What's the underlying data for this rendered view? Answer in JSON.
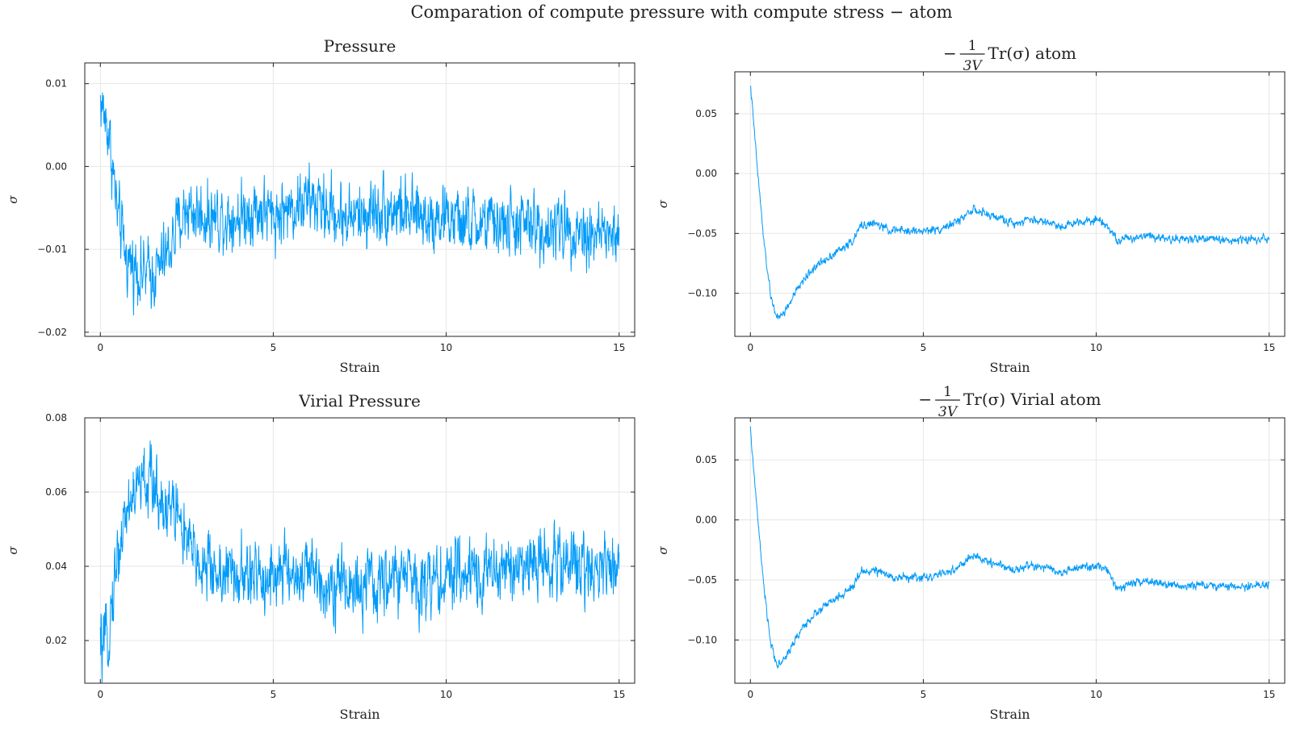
{
  "figure": {
    "title": "Comparation of compute pressure with compute stress − atom"
  },
  "style": {
    "line_color": "#009af9",
    "grid_color": "#e6e6e6",
    "axis_color": "#222222"
  },
  "chart_data": [
    {
      "id": "pressure",
      "type": "line",
      "title": "Pressure",
      "xlabel": "Strain",
      "ylabel": "σ",
      "xlim": [
        -0.45,
        15.45
      ],
      "ylim": [
        -0.0205,
        0.0125
      ],
      "xticks": [
        0,
        5,
        10,
        15
      ],
      "xtick_labels": [
        "0",
        "5",
        "10",
        "15"
      ],
      "yticks": [
        -0.02,
        -0.01,
        0.0,
        0.01
      ],
      "ytick_labels": [
        "−0.02",
        "−0.01",
        "0.00",
        "0.01"
      ],
      "grid": true,
      "legend": "none",
      "series": [
        {
          "x": [
            0,
            0.25,
            0.5,
            0.75,
            1,
            1.25,
            1.5,
            1.75,
            2,
            2.25,
            2.5,
            3,
            3.5,
            4,
            4.5,
            5,
            5.5,
            6,
            6.5,
            7,
            7.5,
            8,
            8.5,
            9,
            9.5,
            10,
            10.5,
            11,
            11.5,
            12,
            12.5,
            13,
            13.5,
            14,
            14.5,
            15
          ],
          "y": [
            0.008,
            0.004,
            -0.006,
            -0.011,
            -0.012,
            -0.013,
            -0.013,
            -0.012,
            -0.01,
            -0.007,
            -0.005,
            -0.006,
            -0.006,
            -0.006,
            -0.005,
            -0.006,
            -0.005,
            -0.004,
            -0.005,
            -0.006,
            -0.006,
            -0.005,
            -0.005,
            -0.006,
            -0.006,
            -0.006,
            -0.007,
            -0.007,
            -0.007,
            -0.007,
            -0.007,
            -0.008,
            -0.007,
            -0.008,
            -0.008,
            -0.009
          ],
          "noise": 0.0032
        }
      ]
    },
    {
      "id": "stress-atom",
      "type": "line",
      "title": "−(1/3V) Tr(σ) atom",
      "title_math": {
        "prefix": "−",
        "numerator": "1",
        "denominator": "3V",
        "suffix": "Tr(σ) atom"
      },
      "xlabel": "Strain",
      "ylabel": "σ",
      "xlim": [
        -0.45,
        15.45
      ],
      "ylim": [
        -0.136,
        0.085
      ],
      "xticks": [
        0,
        5,
        10,
        15
      ],
      "xtick_labels": [
        "0",
        "5",
        "10",
        "15"
      ],
      "yticks": [
        -0.1,
        -0.05,
        0.0,
        0.05
      ],
      "ytick_labels": [
        "−0.10",
        "−0.05",
        "0.00",
        "0.05"
      ],
      "grid": true,
      "legend": "none",
      "series": [
        {
          "x": [
            0,
            0.1,
            0.2,
            0.4,
            0.6,
            0.8,
            1,
            1.2,
            1.5,
            1.8,
            2.1,
            2.4,
            2.7,
            3,
            3.2,
            3.6,
            4,
            4.5,
            5,
            5.5,
            6,
            6.4,
            6.8,
            7.2,
            7.6,
            8,
            8.5,
            9,
            9.5,
            10,
            10.3,
            10.6,
            11,
            11.5,
            12,
            12.5,
            13,
            13.5,
            14,
            14.5,
            15
          ],
          "y": [
            0.075,
            0.04,
            0.005,
            -0.06,
            -0.105,
            -0.122,
            -0.115,
            -0.105,
            -0.09,
            -0.08,
            -0.073,
            -0.067,
            -0.062,
            -0.055,
            -0.043,
            -0.042,
            -0.047,
            -0.048,
            -0.048,
            -0.046,
            -0.04,
            -0.03,
            -0.034,
            -0.037,
            -0.042,
            -0.038,
            -0.04,
            -0.044,
            -0.04,
            -0.038,
            -0.042,
            -0.056,
            -0.054,
            -0.051,
            -0.054,
            -0.055,
            -0.054,
            -0.055,
            -0.056,
            -0.055,
            -0.053
          ],
          "noise": 0.0028
        }
      ]
    },
    {
      "id": "virial-pressure",
      "type": "line",
      "title": "Virial Pressure",
      "xlabel": "Strain",
      "ylabel": "σ",
      "xlim": [
        -0.45,
        15.45
      ],
      "ylim": [
        0.0085,
        0.08
      ],
      "xticks": [
        0,
        5,
        10,
        15
      ],
      "xtick_labels": [
        "0",
        "5",
        "10",
        "15"
      ],
      "yticks": [
        0.02,
        0.04,
        0.06,
        0.08
      ],
      "ytick_labels": [
        "0.02",
        "0.04",
        "0.06",
        "0.08"
      ],
      "grid": true,
      "legend": "none",
      "series": [
        {
          "x": [
            0,
            0.15,
            0.3,
            0.5,
            0.75,
            1,
            1.25,
            1.5,
            1.75,
            2,
            2.25,
            2.5,
            3,
            3.5,
            4,
            4.5,
            5,
            5.5,
            6,
            6.5,
            7,
            7.5,
            8,
            8.5,
            9,
            9.5,
            10,
            10.5,
            11,
            11.5,
            12,
            12.5,
            13,
            13.5,
            14,
            14.5,
            15
          ],
          "y": [
            0.018,
            0.017,
            0.028,
            0.043,
            0.055,
            0.06,
            0.063,
            0.062,
            0.058,
            0.056,
            0.055,
            0.045,
            0.04,
            0.038,
            0.037,
            0.037,
            0.038,
            0.038,
            0.038,
            0.036,
            0.035,
            0.034,
            0.034,
            0.037,
            0.037,
            0.036,
            0.036,
            0.039,
            0.038,
            0.039,
            0.04,
            0.041,
            0.041,
            0.041,
            0.04,
            0.041,
            0.04
          ],
          "noise": 0.0075
        }
      ]
    },
    {
      "id": "stress-virial-atom",
      "type": "line",
      "title": "−(1/3V) Tr(σ) Virial atom",
      "title_math": {
        "prefix": "−",
        "numerator": "1",
        "denominator": "3V",
        "suffix": "Tr(σ) Virial atom"
      },
      "xlabel": "Strain",
      "ylabel": "σ",
      "xlim": [
        -0.45,
        15.45
      ],
      "ylim": [
        -0.136,
        0.085
      ],
      "xticks": [
        0,
        5,
        10,
        15
      ],
      "xtick_labels": [
        "0",
        "5",
        "10",
        "15"
      ],
      "yticks": [
        -0.1,
        -0.05,
        0.0,
        0.05
      ],
      "ytick_labels": [
        "−0.10",
        "−0.05",
        "0.00",
        "0.05"
      ],
      "grid": true,
      "legend": "none",
      "series": [
        {
          "x": [
            0,
            0.1,
            0.2,
            0.4,
            0.6,
            0.8,
            1,
            1.2,
            1.5,
            1.8,
            2.1,
            2.4,
            2.7,
            3,
            3.2,
            3.6,
            4,
            4.5,
            5,
            5.5,
            6,
            6.4,
            6.8,
            7.2,
            7.6,
            8,
            8.5,
            9,
            9.5,
            10,
            10.3,
            10.6,
            11,
            11.5,
            12,
            12.5,
            13,
            13.5,
            14,
            14.5,
            15
          ],
          "y": [
            0.075,
            0.04,
            0.005,
            -0.06,
            -0.105,
            -0.122,
            -0.115,
            -0.105,
            -0.09,
            -0.08,
            -0.073,
            -0.067,
            -0.062,
            -0.055,
            -0.043,
            -0.042,
            -0.047,
            -0.048,
            -0.048,
            -0.046,
            -0.04,
            -0.03,
            -0.034,
            -0.037,
            -0.042,
            -0.038,
            -0.04,
            -0.044,
            -0.04,
            -0.038,
            -0.042,
            -0.056,
            -0.054,
            -0.051,
            -0.054,
            -0.055,
            -0.054,
            -0.055,
            -0.056,
            -0.055,
            -0.053
          ],
          "noise": 0.0028
        }
      ]
    }
  ]
}
